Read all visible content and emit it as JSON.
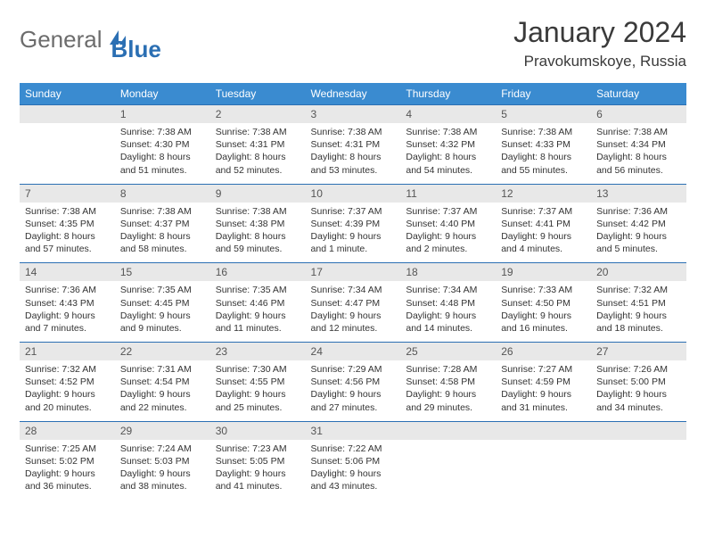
{
  "logo": {
    "part1": "General",
    "part2": "Blue"
  },
  "title": "January 2024",
  "location": "Pravokumskoye, Russia",
  "colors": {
    "header_bg": "#3a8bd0",
    "header_fg": "#ffffff",
    "daynum_bg": "#e8e8e8",
    "rule": "#2b6fb3",
    "text": "#333333",
    "logo_gray": "#6c6c6c",
    "logo_blue": "#2b6fb3"
  },
  "dow": [
    "Sunday",
    "Monday",
    "Tuesday",
    "Wednesday",
    "Thursday",
    "Friday",
    "Saturday"
  ],
  "weeks": [
    {
      "nums": [
        "",
        "1",
        "2",
        "3",
        "4",
        "5",
        "6"
      ],
      "cells": [
        null,
        {
          "sr": "Sunrise: 7:38 AM",
          "ss": "Sunset: 4:30 PM",
          "d1": "Daylight: 8 hours",
          "d2": "and 51 minutes."
        },
        {
          "sr": "Sunrise: 7:38 AM",
          "ss": "Sunset: 4:31 PM",
          "d1": "Daylight: 8 hours",
          "d2": "and 52 minutes."
        },
        {
          "sr": "Sunrise: 7:38 AM",
          "ss": "Sunset: 4:31 PM",
          "d1": "Daylight: 8 hours",
          "d2": "and 53 minutes."
        },
        {
          "sr": "Sunrise: 7:38 AM",
          "ss": "Sunset: 4:32 PM",
          "d1": "Daylight: 8 hours",
          "d2": "and 54 minutes."
        },
        {
          "sr": "Sunrise: 7:38 AM",
          "ss": "Sunset: 4:33 PM",
          "d1": "Daylight: 8 hours",
          "d2": "and 55 minutes."
        },
        {
          "sr": "Sunrise: 7:38 AM",
          "ss": "Sunset: 4:34 PM",
          "d1": "Daylight: 8 hours",
          "d2": "and 56 minutes."
        }
      ]
    },
    {
      "nums": [
        "7",
        "8",
        "9",
        "10",
        "11",
        "12",
        "13"
      ],
      "cells": [
        {
          "sr": "Sunrise: 7:38 AM",
          "ss": "Sunset: 4:35 PM",
          "d1": "Daylight: 8 hours",
          "d2": "and 57 minutes."
        },
        {
          "sr": "Sunrise: 7:38 AM",
          "ss": "Sunset: 4:37 PM",
          "d1": "Daylight: 8 hours",
          "d2": "and 58 minutes."
        },
        {
          "sr": "Sunrise: 7:38 AM",
          "ss": "Sunset: 4:38 PM",
          "d1": "Daylight: 8 hours",
          "d2": "and 59 minutes."
        },
        {
          "sr": "Sunrise: 7:37 AM",
          "ss": "Sunset: 4:39 PM",
          "d1": "Daylight: 9 hours",
          "d2": "and 1 minute."
        },
        {
          "sr": "Sunrise: 7:37 AM",
          "ss": "Sunset: 4:40 PM",
          "d1": "Daylight: 9 hours",
          "d2": "and 2 minutes."
        },
        {
          "sr": "Sunrise: 7:37 AM",
          "ss": "Sunset: 4:41 PM",
          "d1": "Daylight: 9 hours",
          "d2": "and 4 minutes."
        },
        {
          "sr": "Sunrise: 7:36 AM",
          "ss": "Sunset: 4:42 PM",
          "d1": "Daylight: 9 hours",
          "d2": "and 5 minutes."
        }
      ]
    },
    {
      "nums": [
        "14",
        "15",
        "16",
        "17",
        "18",
        "19",
        "20"
      ],
      "cells": [
        {
          "sr": "Sunrise: 7:36 AM",
          "ss": "Sunset: 4:43 PM",
          "d1": "Daylight: 9 hours",
          "d2": "and 7 minutes."
        },
        {
          "sr": "Sunrise: 7:35 AM",
          "ss": "Sunset: 4:45 PM",
          "d1": "Daylight: 9 hours",
          "d2": "and 9 minutes."
        },
        {
          "sr": "Sunrise: 7:35 AM",
          "ss": "Sunset: 4:46 PM",
          "d1": "Daylight: 9 hours",
          "d2": "and 11 minutes."
        },
        {
          "sr": "Sunrise: 7:34 AM",
          "ss": "Sunset: 4:47 PM",
          "d1": "Daylight: 9 hours",
          "d2": "and 12 minutes."
        },
        {
          "sr": "Sunrise: 7:34 AM",
          "ss": "Sunset: 4:48 PM",
          "d1": "Daylight: 9 hours",
          "d2": "and 14 minutes."
        },
        {
          "sr": "Sunrise: 7:33 AM",
          "ss": "Sunset: 4:50 PM",
          "d1": "Daylight: 9 hours",
          "d2": "and 16 minutes."
        },
        {
          "sr": "Sunrise: 7:32 AM",
          "ss": "Sunset: 4:51 PM",
          "d1": "Daylight: 9 hours",
          "d2": "and 18 minutes."
        }
      ]
    },
    {
      "nums": [
        "21",
        "22",
        "23",
        "24",
        "25",
        "26",
        "27"
      ],
      "cells": [
        {
          "sr": "Sunrise: 7:32 AM",
          "ss": "Sunset: 4:52 PM",
          "d1": "Daylight: 9 hours",
          "d2": "and 20 minutes."
        },
        {
          "sr": "Sunrise: 7:31 AM",
          "ss": "Sunset: 4:54 PM",
          "d1": "Daylight: 9 hours",
          "d2": "and 22 minutes."
        },
        {
          "sr": "Sunrise: 7:30 AM",
          "ss": "Sunset: 4:55 PM",
          "d1": "Daylight: 9 hours",
          "d2": "and 25 minutes."
        },
        {
          "sr": "Sunrise: 7:29 AM",
          "ss": "Sunset: 4:56 PM",
          "d1": "Daylight: 9 hours",
          "d2": "and 27 minutes."
        },
        {
          "sr": "Sunrise: 7:28 AM",
          "ss": "Sunset: 4:58 PM",
          "d1": "Daylight: 9 hours",
          "d2": "and 29 minutes."
        },
        {
          "sr": "Sunrise: 7:27 AM",
          "ss": "Sunset: 4:59 PM",
          "d1": "Daylight: 9 hours",
          "d2": "and 31 minutes."
        },
        {
          "sr": "Sunrise: 7:26 AM",
          "ss": "Sunset: 5:00 PM",
          "d1": "Daylight: 9 hours",
          "d2": "and 34 minutes."
        }
      ]
    },
    {
      "nums": [
        "28",
        "29",
        "30",
        "31",
        "",
        "",
        ""
      ],
      "cells": [
        {
          "sr": "Sunrise: 7:25 AM",
          "ss": "Sunset: 5:02 PM",
          "d1": "Daylight: 9 hours",
          "d2": "and 36 minutes."
        },
        {
          "sr": "Sunrise: 7:24 AM",
          "ss": "Sunset: 5:03 PM",
          "d1": "Daylight: 9 hours",
          "d2": "and 38 minutes."
        },
        {
          "sr": "Sunrise: 7:23 AM",
          "ss": "Sunset: 5:05 PM",
          "d1": "Daylight: 9 hours",
          "d2": "and 41 minutes."
        },
        {
          "sr": "Sunrise: 7:22 AM",
          "ss": "Sunset: 5:06 PM",
          "d1": "Daylight: 9 hours",
          "d2": "and 43 minutes."
        },
        null,
        null,
        null
      ]
    }
  ]
}
